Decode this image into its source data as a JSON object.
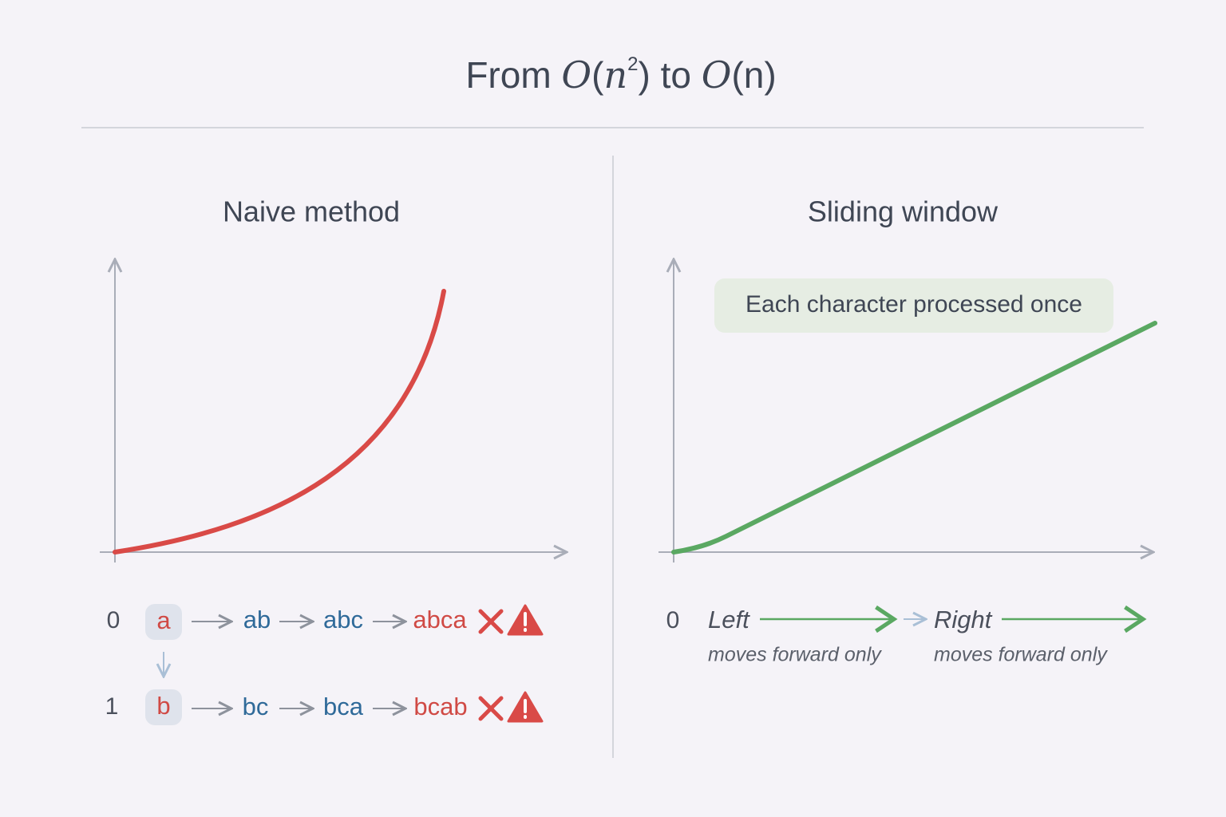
{
  "title": [
    "From ",
    "O",
    "(",
    "n",
    "2",
    ") to ",
    "O",
    "(n)"
  ],
  "panels": [
    {
      "heading": "Naive method",
      "rows": [
        {
          "index": "0",
          "start": "a",
          "steps": [
            "ab",
            "abc",
            "abca"
          ]
        },
        {
          "index": "1",
          "start": "b",
          "steps": [
            "bc",
            "bca",
            "bcab"
          ]
        }
      ]
    },
    {
      "heading": "Sliding window",
      "callout": "Each character processed once",
      "index": "0",
      "pointers": [
        {
          "name": "Left",
          "note": "moves forward only"
        },
        {
          "name": "Right",
          "note": "moves forward only"
        }
      ]
    }
  ]
}
